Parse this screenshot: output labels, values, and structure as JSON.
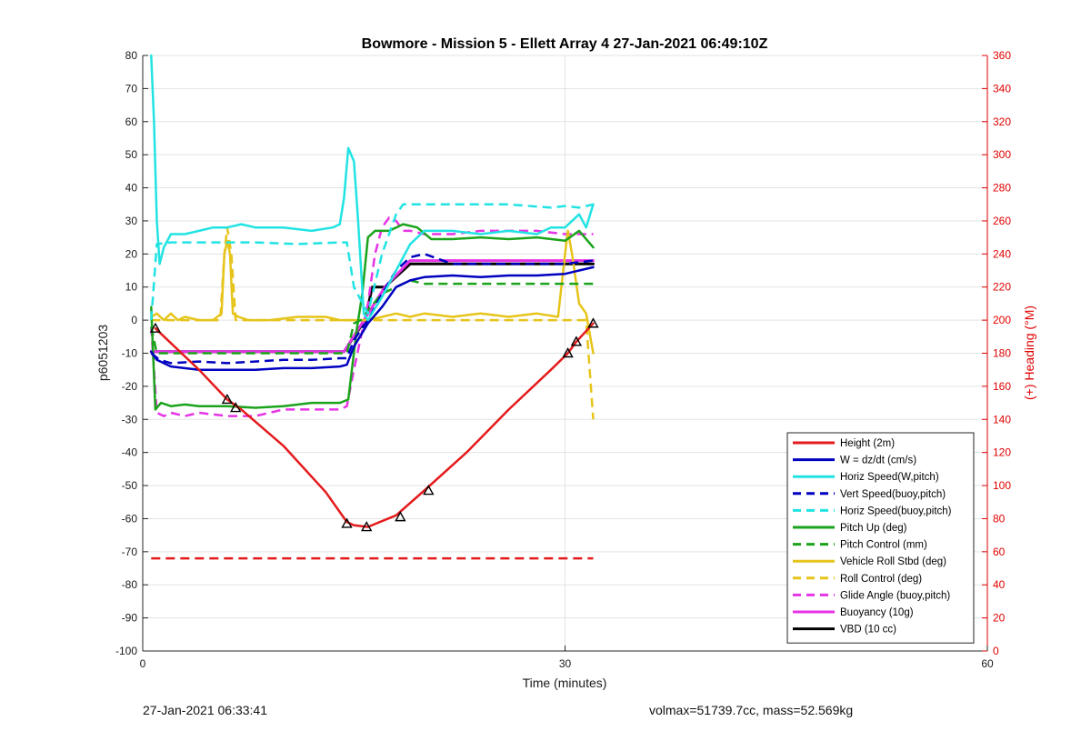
{
  "footer": {
    "left": "27-Jan-2021 06:33:41",
    "right": "volmax=51739.7cc, mass=52.569kg"
  },
  "chart_data": {
    "type": "line",
    "title": "Bowmore - Mission 5 - Ellett Array 4 27-Jan-2021 06:49:10Z",
    "xlabel": "Time (minutes)",
    "ylabel": "p6051203",
    "y2label": "(+) Heading (°M)",
    "xlim": [
      0,
      60
    ],
    "ylim": [
      -100,
      80
    ],
    "y2lim": [
      0,
      360
    ],
    "xticks": [
      0,
      30,
      60
    ],
    "yticks": [
      -100,
      -90,
      -80,
      -70,
      -60,
      -50,
      -40,
      -30,
      -20,
      -10,
      0,
      10,
      20,
      30,
      40,
      50,
      60,
      70,
      80
    ],
    "y2ticks": [
      0,
      20,
      40,
      60,
      80,
      100,
      120,
      140,
      160,
      180,
      200,
      220,
      240,
      260,
      280,
      300,
      320,
      340,
      360
    ],
    "grid": true,
    "legend_position": "bottom-right",
    "series": [
      {
        "name": "Height (2m)",
        "color": "#e41a1c",
        "style": "solid",
        "width": 2.5,
        "marker": "triangle",
        "x": [
          0.9,
          4,
          6,
          7,
          10,
          13,
          14.5,
          15,
          16,
          18,
          20,
          23,
          26,
          29,
          30.2,
          30.8,
          32
        ],
        "y": [
          -2.5,
          -15,
          -24,
          -27,
          -38,
          -52,
          -61,
          -62,
          -62.5,
          -59,
          -51.5,
          -40,
          -27,
          -15,
          -10,
          -6.5,
          -1
        ],
        "markers_x": [
          0.9,
          6,
          6.6,
          14.5,
          15.9,
          18.3,
          20.3,
          30.2,
          30.8,
          32
        ],
        "markers_y": [
          -2.5,
          -24,
          -26.5,
          -61.5,
          -62.5,
          -59.5,
          -51.5,
          -10,
          -6.5,
          -1
        ]
      },
      {
        "name": "W = dz/dt (cm/s)",
        "color": "#0000c0",
        "style": "solid",
        "width": 2.5,
        "x": [
          0.6,
          1,
          2,
          4,
          6,
          8,
          10,
          12,
          14,
          14.5,
          15,
          16,
          17,
          18,
          19,
          20,
          22,
          24,
          26,
          28,
          30,
          31,
          32
        ],
        "y": [
          -9.5,
          -12,
          -14,
          -15,
          -15,
          -15,
          -14.5,
          -14.5,
          -14,
          -13.5,
          -8,
          -1,
          4,
          10,
          12,
          13,
          13.5,
          13,
          13.5,
          13.5,
          14,
          15,
          16
        ]
      },
      {
        "name": "Horiz Speed(W,pitch)",
        "color": "#22e3e3",
        "style": "solid",
        "width": 2.5,
        "x": [
          0.6,
          0.8,
          1,
          1.2,
          1.5,
          2,
          3,
          4,
          5,
          6,
          7,
          8,
          10,
          12,
          13.5,
          14,
          14.3,
          14.6,
          15,
          15.3,
          15.7,
          16,
          17,
          18,
          19,
          20,
          22,
          24,
          26,
          28,
          29,
          30,
          31,
          31.5,
          32
        ],
        "y": [
          80,
          60,
          30,
          17,
          22,
          26,
          26,
          27,
          28,
          28,
          29,
          28,
          28,
          27,
          28,
          29,
          37,
          52,
          48,
          30,
          2,
          0,
          7,
          15,
          23,
          27,
          27,
          26,
          27,
          26,
          28,
          28,
          32,
          28,
          35
        ]
      },
      {
        "name": "Vert Speed(buoy,pitch)",
        "color": "#0000c0",
        "style": "dashed",
        "width": 2.5,
        "x": [
          0.6,
          1.2,
          2,
          4,
          6,
          8,
          10,
          12,
          14,
          14.5,
          15,
          16,
          17,
          18,
          19,
          20,
          22,
          24,
          26,
          28,
          30,
          31,
          32
        ],
        "y": [
          -10,
          -12,
          -13,
          -12.5,
          -13,
          -12.5,
          -12,
          -12,
          -11.5,
          -11.5,
          -6,
          0,
          8,
          15,
          19,
          20,
          17,
          17,
          17,
          17,
          17,
          17.5,
          18
        ]
      },
      {
        "name": "Horiz Speed(buoy,pitch)",
        "color": "#22e3e3",
        "style": "dashed",
        "width": 2.5,
        "x": [
          0.6,
          1,
          2,
          5,
          8,
          11,
          14,
          14.5,
          15,
          16,
          17,
          18,
          18.5,
          19,
          20,
          23,
          26,
          29,
          30,
          31,
          32
        ],
        "y": [
          0,
          23,
          23.5,
          23.5,
          23.5,
          23,
          23.5,
          23.5,
          10,
          2,
          20,
          32,
          35,
          35,
          35,
          35,
          35,
          34,
          34.5,
          34,
          35
        ]
      },
      {
        "name": "Pitch Up (deg)",
        "color": "#1ba31b",
        "style": "solid",
        "width": 2.5,
        "x": [
          0.6,
          0.9,
          1.3,
          2,
          3,
          4,
          6,
          8,
          10,
          12,
          14,
          14.6,
          15.2,
          15.6,
          16,
          16.5,
          17.5,
          18.5,
          19.5,
          20.5,
          22,
          24,
          26,
          28,
          30,
          31,
          32
        ],
        "y": [
          4,
          -27,
          -25,
          -26,
          -25.5,
          -26,
          -26,
          -26.5,
          -26,
          -25,
          -25,
          -24,
          -3,
          8,
          25,
          27,
          27,
          29,
          28,
          24.5,
          24.5,
          25,
          24.5,
          25,
          24,
          27,
          22
        ]
      },
      {
        "name": "Pitch Control (mm)",
        "color": "#1ba31b",
        "style": "dashed",
        "width": 2.5,
        "x": [
          0.6,
          1,
          3,
          6,
          9,
          12,
          14.5,
          15,
          15.5,
          16,
          17,
          18,
          19,
          20,
          22,
          25,
          28,
          31,
          32
        ],
        "y": [
          -2,
          -10,
          -10,
          -10,
          -10,
          -10,
          -10,
          -1,
          0,
          3,
          8,
          10,
          12,
          11,
          11,
          11,
          11,
          11,
          11
        ]
      },
      {
        "name": "Vehicle Roll Stbd (deg)",
        "color": "#e6c41a",
        "style": "solid",
        "width": 2.5,
        "x": [
          0.6,
          1,
          1.5,
          2,
          2.5,
          3,
          4,
          5,
          5.6,
          5.8,
          6,
          6.2,
          6.4,
          6.8,
          7.5,
          9,
          11,
          13,
          14,
          15,
          16,
          17,
          18,
          19,
          20,
          22,
          24,
          26,
          28,
          29.5,
          30,
          30.2,
          30.5,
          31,
          31.5,
          32
        ],
        "y": [
          1,
          2,
          0,
          2,
          0,
          1,
          0,
          0,
          2,
          20,
          24,
          20,
          2,
          1,
          0,
          0,
          1,
          1,
          0,
          0,
          0,
          1,
          2,
          1,
          2,
          1,
          2,
          1,
          2,
          1,
          20,
          27,
          20,
          5,
          2,
          -10
        ]
      },
      {
        "name": "Roll Control (deg)",
        "color": "#e6c41a",
        "style": "dashed",
        "width": 2.5,
        "x": [
          0.6,
          2,
          4,
          5.5,
          5.8,
          6,
          6.3,
          6.6,
          8,
          11,
          14,
          17,
          20,
          23,
          26,
          29,
          30.5,
          31.2,
          31.5,
          32
        ],
        "y": [
          0,
          0,
          0,
          0,
          20,
          28,
          20,
          0,
          0,
          0,
          0,
          0,
          0,
          0,
          0,
          0,
          0,
          0,
          0,
          -30
        ]
      },
      {
        "name": "Glide Angle (buoy,pitch)",
        "color": "#e633e6",
        "style": "dashed",
        "width": 2.5,
        "x": [
          0.6,
          1,
          1.5,
          2,
          3,
          4,
          6,
          8,
          10,
          12,
          13.5,
          14,
          14.5,
          15,
          15.5,
          16,
          16.5,
          17,
          17.5,
          18,
          18.5,
          19,
          20,
          22,
          24,
          26,
          28,
          30,
          31,
          32
        ],
        "y": [
          -2,
          -28,
          -29,
          -28,
          -29,
          -28,
          -29,
          -29,
          -27,
          -27,
          -27,
          -27,
          -26,
          -15,
          -5,
          5,
          20,
          28,
          31,
          30,
          27,
          27,
          26,
          26,
          27,
          27,
          27,
          26,
          26,
          26
        ]
      },
      {
        "name": "Buoyancy (10g)",
        "color": "#e633e6",
        "style": "solid",
        "width": 3,
        "x": [
          0.6,
          14.3,
          17.2,
          19,
          32
        ],
        "y": [
          -9.5,
          -9.5,
          10,
          18,
          18
        ]
      },
      {
        "name": "VBD (10 cc)",
        "color": "#000000",
        "style": "solid",
        "width": 3,
        "x": [
          0.6,
          14.3,
          15.8,
          16.3,
          17.2,
          19,
          32
        ],
        "y": [
          -9.5,
          -9.5,
          0,
          10,
          10,
          17,
          17
        ]
      },
      {
        "name": "",
        "axis": "right",
        "color": "#e41a1c",
        "style": "dashed",
        "width": 2.5,
        "x": [
          0.6,
          32
        ],
        "y": [
          56,
          56
        ]
      },
      {
        "name": "",
        "axis": "right",
        "color": "#e41a1c",
        "style": "dots",
        "x": [
          0.6,
          1.0,
          1.4,
          1.7,
          2.0,
          2.3,
          2.6,
          3.0,
          3.3,
          3.6,
          4.0,
          4.3,
          4.6,
          4.9,
          5.2,
          5.6,
          6.0,
          6.3,
          6.6,
          6.9,
          7.2,
          7.5,
          7.9,
          8.2,
          8.5,
          8.8,
          9.1,
          9.5,
          9.8,
          10.1,
          10.4,
          10.7,
          11.1,
          11.4,
          11.7,
          12.0,
          12.3,
          12.7,
          13.0,
          13.3,
          13.6,
          13.9,
          14.3,
          14.6,
          14.9,
          15.2,
          15.5,
          15.9,
          16.2,
          16.5,
          16.8,
          17.1,
          17.4,
          17.8,
          18.1,
          18.4,
          18.7,
          19.0,
          19.4,
          19.7,
          20.0,
          20.3,
          20.6,
          21.0,
          21.3,
          21.6,
          21.9,
          22.2,
          22.6,
          22.9,
          23.2,
          23.5,
          23.8,
          24.2,
          24.5,
          24.8,
          25.1,
          25.4,
          25.8,
          26.1,
          26.4,
          26.7,
          27.0,
          27.4,
          27.7,
          28.0,
          28.3,
          28.6,
          29.0,
          29.3,
          29.6,
          29.9,
          30.3,
          30.6,
          30.9,
          31.2,
          31.5,
          31.8,
          32.0
        ],
        "y": [
          60,
          68,
          64,
          58,
          62,
          59,
          66,
          64,
          59,
          66,
          65,
          62,
          67,
          66,
          68,
          70,
          71,
          62,
          54,
          53,
          55,
          56,
          54,
          55,
          56,
          57,
          56,
          57,
          56,
          56,
          57,
          58,
          57,
          57,
          58,
          58,
          60,
          61,
          59,
          57,
          55,
          54,
          53,
          52,
          50,
          49,
          48,
          47,
          48,
          49,
          52,
          55,
          57,
          60,
          64,
          65,
          64,
          62,
          60,
          60,
          60,
          58,
          57,
          55,
          54,
          53,
          55,
          55,
          56,
          56,
          57,
          58,
          58,
          58,
          56,
          56,
          56,
          56,
          55,
          55,
          55,
          54,
          54,
          53,
          52,
          49,
          47,
          43,
          40,
          38,
          37,
          42,
          48,
          56,
          60,
          65,
          70,
          72,
          91
        ]
      }
    ]
  }
}
